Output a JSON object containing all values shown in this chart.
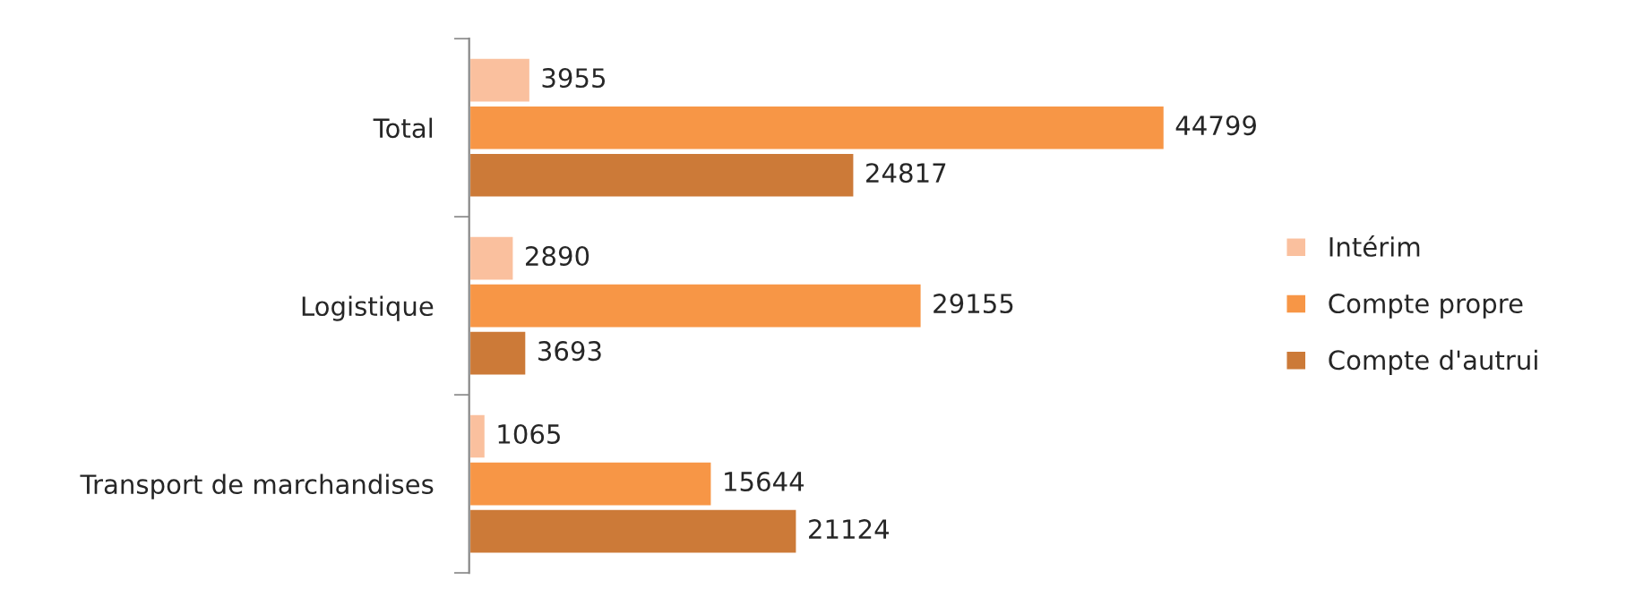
{
  "chart_data": {
    "type": "bar",
    "orientation": "horizontal",
    "categories": [
      "Total",
      "Logistique",
      "Transport de marchandises"
    ],
    "series": [
      {
        "name": "Intérim",
        "color": "#fac09e",
        "values": [
          3955,
          2890,
          1065
        ]
      },
      {
        "name": "Compte propre",
        "color": "#f79646",
        "values": [
          44799,
          29155,
          15644
        ]
      },
      {
        "name": "Compte d'autrui",
        "color": "#cc7a38",
        "values": [
          24817,
          3693,
          21124
        ]
      }
    ],
    "data_labels": true,
    "legend": "right",
    "grid": false
  }
}
